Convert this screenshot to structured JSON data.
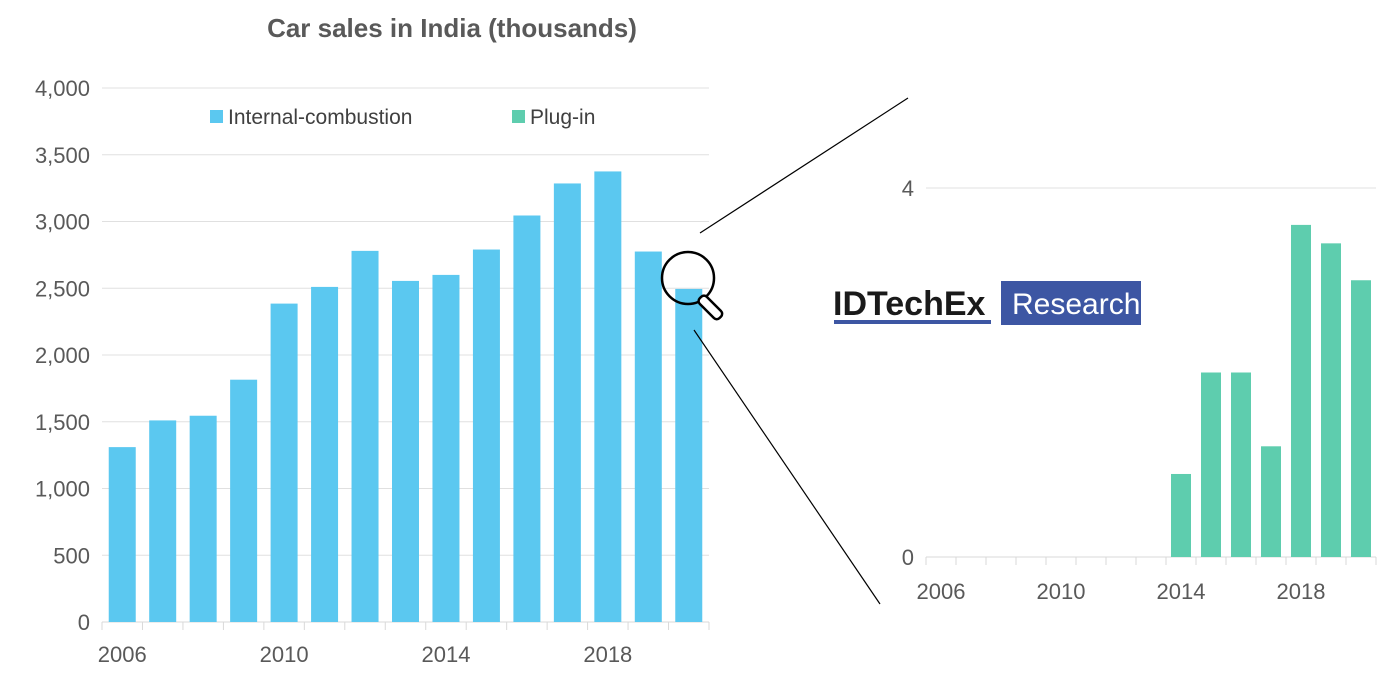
{
  "chart_data": [
    {
      "type": "bar",
      "title": "Car sales in India (thousands)",
      "x": [
        2006,
        2007,
        2008,
        2009,
        2010,
        2011,
        2012,
        2013,
        2014,
        2015,
        2016,
        2017,
        2018,
        2019,
        2020
      ],
      "x_tick_labels": [
        "2006",
        "2010",
        "2014",
        "2018"
      ],
      "y_tick_labels": [
        "0",
        "500",
        "1,000",
        "1,500",
        "2,000",
        "2,500",
        "3,000",
        "3,500",
        "4,000"
      ],
      "ylim": [
        0,
        4000
      ],
      "legend_position": "top",
      "series": [
        {
          "name": "Internal-combustion",
          "color": "#5bc8f0",
          "values": [
            1310,
            1510,
            1545,
            1815,
            2385,
            2510,
            2780,
            2555,
            2600,
            2790,
            3045,
            3285,
            3375,
            2775,
            2495
          ]
        },
        {
          "name": "Plug-in",
          "color": "#5ecdae",
          "values": [
            0,
            0,
            0,
            0,
            0,
            0,
            0,
            0,
            0,
            0,
            0,
            0,
            0,
            0,
            0
          ]
        }
      ],
      "grid": true
    },
    {
      "type": "bar",
      "x": [
        2006,
        2007,
        2008,
        2009,
        2010,
        2011,
        2012,
        2013,
        2014,
        2015,
        2016,
        2017,
        2018,
        2019,
        2020
      ],
      "x_tick_labels": [
        "2006",
        "2010",
        "2014",
        "2018"
      ],
      "y_tick_labels": [
        "0",
        "4"
      ],
      "ylim": [
        0,
        4
      ],
      "series": [
        {
          "name": "Plug-in",
          "color": "#5ecdae",
          "values": [
            0,
            0,
            0,
            0,
            0,
            0,
            0,
            0,
            0.9,
            2.0,
            2.0,
            1.2,
            3.6,
            3.4,
            3.0
          ]
        }
      ],
      "grid": true
    }
  ],
  "logo": {
    "main": "IDTechEx",
    "sub": "Research",
    "main_color": "#1a1a1a",
    "sub_bg": "#3d56a3",
    "underline": "#3d56a3"
  },
  "zoom": {
    "icon": "magnifier-icon"
  }
}
